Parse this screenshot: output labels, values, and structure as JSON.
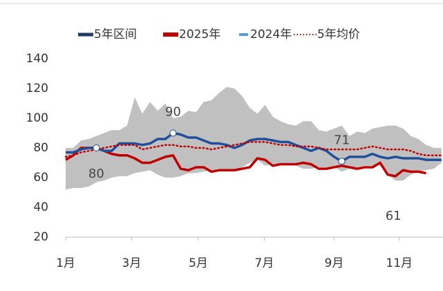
{
  "chart_data": {
    "type": "line",
    "x": [
      1,
      2,
      3,
      4,
      5,
      6,
      7,
      8,
      9,
      10,
      11,
      12,
      13,
      14,
      15,
      16,
      17,
      18,
      19,
      20,
      21,
      22,
      23,
      24,
      25,
      26,
      27,
      28,
      29,
      30,
      31,
      32,
      33,
      34,
      35,
      36,
      37,
      38,
      39,
      40,
      41,
      42,
      43,
      44,
      45,
      46,
      47,
      48,
      49,
      50
    ],
    "xlim": [
      1,
      50.2
    ],
    "xticks": [
      {
        "value": 1,
        "label": "1月"
      },
      {
        "value": 9.6,
        "label": "3月"
      },
      {
        "value": 18.3,
        "label": "5月"
      },
      {
        "value": 26.9,
        "label": "7月"
      },
      {
        "value": 36,
        "label": "9月"
      },
      {
        "value": 44.5,
        "label": "11月"
      }
    ],
    "ylim": [
      20,
      140
    ],
    "yticks": [
      20,
      40,
      60,
      80,
      100,
      120,
      140
    ],
    "series": [
      {
        "name": "5年区间",
        "kind": "range",
        "color": "#c0c0c0",
        "legend_color": "#1f3864",
        "upper": [
          80,
          80,
          85,
          86,
          88,
          90,
          92,
          92,
          95,
          114,
          103,
          111,
          105,
          110,
          100,
          101,
          105,
          104,
          111,
          112,
          117,
          121,
          120,
          115,
          107,
          103,
          109,
          101,
          98,
          96,
          95,
          98,
          98,
          92,
          91,
          93,
          95,
          88,
          91,
          90,
          93,
          94,
          95,
          95,
          93,
          88,
          86,
          82,
          80,
          80
        ],
        "lower": [
          52,
          53,
          53,
          54,
          57,
          58,
          60,
          61,
          61,
          63,
          64,
          65,
          62,
          60,
          60,
          61,
          63,
          63,
          64,
          65,
          66,
          65,
          65,
          67,
          70,
          72,
          68,
          69,
          69,
          69,
          68,
          66,
          66,
          67,
          67,
          67,
          64,
          66,
          67,
          68,
          68,
          68,
          62,
          58,
          58,
          62,
          64,
          65,
          66,
          70
        ]
      },
      {
        "name": "2025年",
        "color": "#c00000",
        "legend_color": "#c00000",
        "width": 3.5,
        "values": [
          72,
          75,
          80,
          80,
          80,
          78,
          76,
          75,
          75,
          73,
          70,
          70,
          72,
          74,
          75,
          66,
          65,
          67,
          67,
          64,
          65,
          65,
          65,
          66,
          67,
          73,
          72,
          68,
          69,
          69,
          69,
          70,
          69,
          66,
          66,
          67,
          68,
          67,
          66,
          67,
          67,
          70,
          62,
          61,
          65,
          64,
          64,
          63,
          null,
          null
        ]
      },
      {
        "name": "2024年",
        "color": "#1f4e9a",
        "legend_color": "#5b9bd5",
        "width": 3.5,
        "values": [
          77,
          77,
          79,
          80,
          80,
          78,
          78,
          83,
          83,
          83,
          82,
          83,
          86,
          86,
          90,
          89,
          87,
          87,
          85,
          83,
          83,
          82,
          80,
          82,
          85,
          86,
          86,
          85,
          84,
          84,
          82,
          80,
          78,
          80,
          78,
          74,
          71,
          74,
          74,
          74,
          76,
          74,
          73,
          74,
          73,
          73,
          73,
          72,
          72,
          72
        ]
      },
      {
        "name": "5年均价",
        "color": "#c00000",
        "legend_color": "#c00000",
        "width": 2.5,
        "dash": "dotted",
        "values": [
          74,
          75,
          77,
          78,
          79,
          80,
          81,
          82,
          82,
          82,
          79,
          80,
          81,
          82,
          82,
          81,
          81,
          80,
          80,
          79,
          80,
          81,
          82,
          83,
          84,
          84,
          84,
          83,
          82,
          82,
          81,
          81,
          81,
          80,
          79,
          79,
          79,
          79,
          79,
          80,
          81,
          80,
          79,
          79,
          79,
          78,
          76,
          75,
          75,
          75
        ]
      }
    ],
    "annotations": [
      "90",
      "80",
      "71",
      "61"
    ]
  }
}
